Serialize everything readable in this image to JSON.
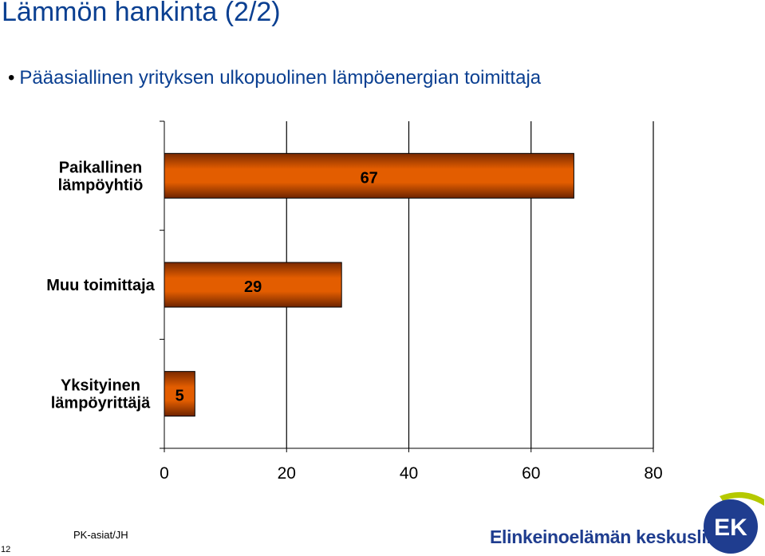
{
  "slide": {
    "title": "Lämmön hankinta (2/2)",
    "bullet": "Pääasiallinen yrityksen ulkopuolinen lämpöenergian toimittaja",
    "page_number": "12",
    "footer_note": "PK-asiat/JH",
    "org_name": "Elinkeinoelämän keskusliitto",
    "logo_text": "EK"
  },
  "colors": {
    "title": "#0a3f91",
    "bar_fill": "#e05a00",
    "bar_edge": "#7a2a00",
    "org_name": "#1f3d8f",
    "logo_blue": "#1f3d8f",
    "logo_green": "#b5c900"
  },
  "chart_data": {
    "type": "bar",
    "orientation": "horizontal",
    "categories": [
      [
        "Paikallinen",
        "lämpöyhtiö"
      ],
      [
        "Muu toimittaja"
      ],
      [
        "Yksityinen",
        "lämpöyrittäjä"
      ]
    ],
    "values": [
      67,
      29,
      5
    ],
    "value_labels": [
      "67",
      "29",
      "5"
    ],
    "xlim": [
      0,
      80
    ],
    "xticks": [
      0,
      20,
      40,
      60,
      80
    ],
    "xtick_labels": [
      "0",
      "20",
      "40",
      "60",
      "80"
    ],
    "grid": "vertical",
    "legend": "none"
  }
}
